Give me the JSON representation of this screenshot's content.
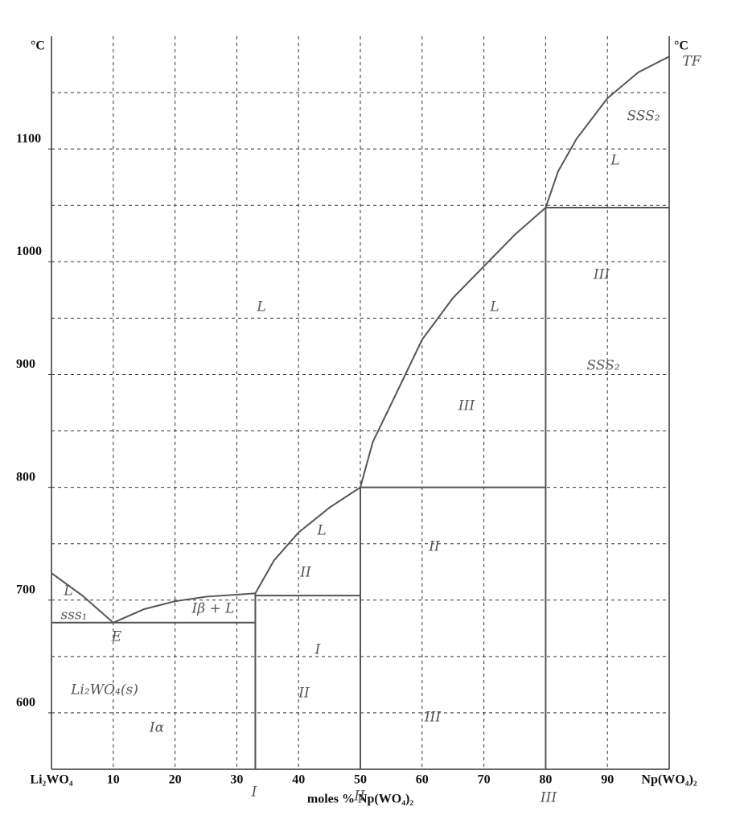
{
  "chart_data": {
    "type": "line",
    "y_unit_left": "°C",
    "y_unit_right": "°C",
    "x_label": "moles % Np(WO₄)₂",
    "xlim": [
      0,
      100
    ],
    "ylim": [
      550,
      1200
    ],
    "xticks": [
      {
        "value": 0,
        "label": "Li₂WO₄"
      },
      10,
      20,
      30,
      40,
      50,
      60,
      70,
      80,
      90,
      {
        "value": 100,
        "label": "Np(WO₄)₂"
      }
    ],
    "yticks": [
      600,
      700,
      800,
      900,
      1000,
      1100
    ],
    "grid_y": [
      600,
      650,
      700,
      750,
      800,
      850,
      900,
      950,
      1000,
      1050,
      1100,
      1150
    ],
    "grid": true,
    "series": [
      {
        "color": "#555555",
        "x": [
          0,
          5,
          10
        ],
        "values": [
          724,
          704,
          680
        ]
      },
      {
        "color": "#555555",
        "x": [
          10,
          15,
          20,
          25,
          33
        ],
        "values": [
          680,
          692,
          699,
          703,
          706
        ]
      },
      {
        "color": "#555555",
        "x": [
          33,
          36,
          40,
          45,
          50
        ],
        "values": [
          706,
          735,
          760,
          782,
          800
        ]
      },
      {
        "color": "#555555",
        "x": [
          50,
          52,
          55,
          60,
          65,
          70,
          75,
          80
        ],
        "values": [
          800,
          840,
          874,
          931,
          968,
          996,
          1024,
          1048
        ]
      },
      {
        "color": "#555555",
        "x": [
          80,
          82,
          85,
          90,
          95,
          100
        ],
        "values": [
          1048,
          1080,
          1109,
          1145,
          1168,
          1182
        ]
      },
      {
        "color": "#555555",
        "x": [
          0,
          33
        ],
        "values": [
          680,
          680
        ]
      },
      {
        "color": "#555555",
        "x": [
          33,
          50
        ],
        "values": [
          704,
          704
        ]
      },
      {
        "color": "#555555",
        "x": [
          50,
          80
        ],
        "values": [
          800,
          800
        ]
      },
      {
        "color": "#555555",
        "x": [
          80,
          100
        ],
        "values": [
          1048,
          1048
        ]
      },
      {
        "color": "#555555",
        "x": [
          33,
          33
        ],
        "values": [
          550,
          706
        ]
      },
      {
        "color": "#555555",
        "x": [
          50,
          50
        ],
        "values": [
          550,
          800
        ]
      },
      {
        "color": "#555555",
        "x": [
          80,
          80
        ],
        "values": [
          550,
          1048
        ]
      }
    ],
    "annotations": [
      "L",
      "L",
      "SSS₂",
      "L",
      "III",
      "SSS₂",
      "III",
      "L",
      "II",
      "L",
      "sss₁",
      "E",
      "Iβ + L",
      "I",
      "II",
      "II",
      "III",
      "Li₂WO₄(s)",
      "Iα",
      "TF",
      "I",
      "II",
      "III"
    ]
  }
}
